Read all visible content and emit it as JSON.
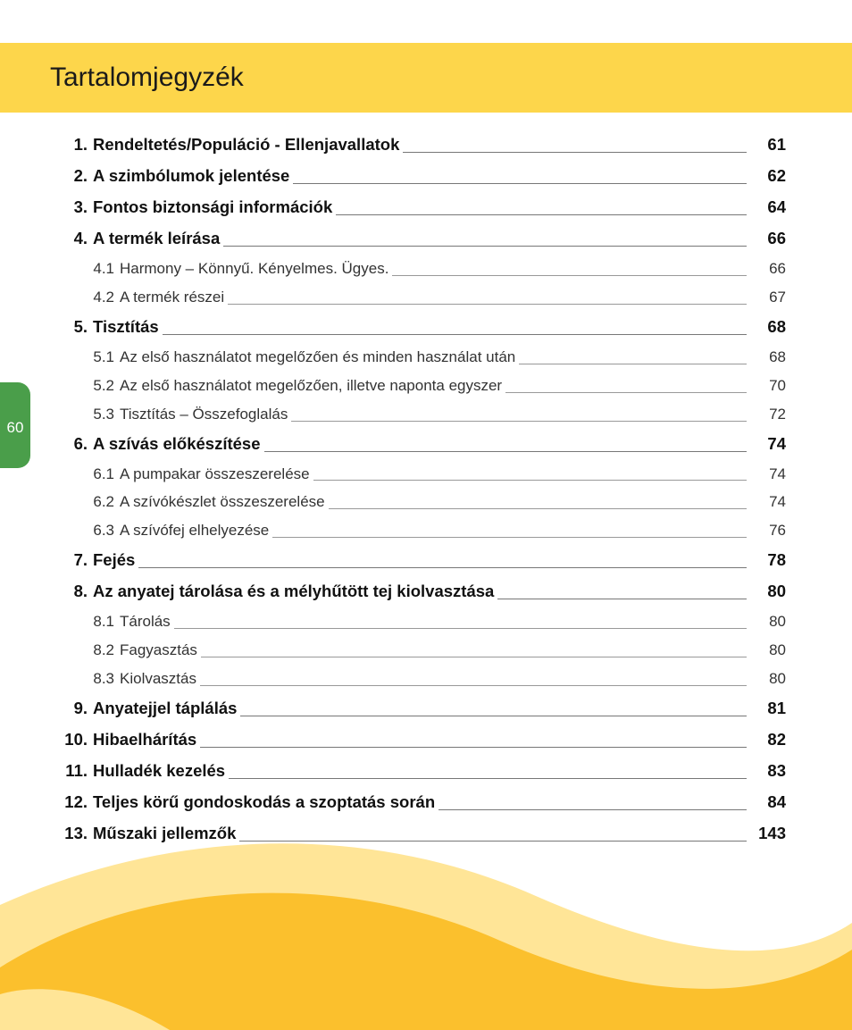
{
  "title": "Tartalomjegyzék",
  "page_number": "60",
  "colors": {
    "header_band": "#fdd64b",
    "page_tab": "#4a9e4a",
    "wave_dark": "#fbc02d",
    "wave_light": "#ffe597",
    "text": "#1a1a1a"
  },
  "entries": [
    {
      "level": "main",
      "num": "1.",
      "title": "Rendeltetés/Populáció - Ellenjavallatok",
      "page": "61"
    },
    {
      "level": "main",
      "num": "2.",
      "title": "A szimbólumok jelentése",
      "page": "62"
    },
    {
      "level": "main",
      "num": "3.",
      "title": "Fontos biztonsági információk",
      "page": "64"
    },
    {
      "level": "main",
      "num": "4.",
      "title": "A termék leírása",
      "page": "66"
    },
    {
      "level": "sub",
      "num": "4.1",
      "title": "Harmony – Könnyű. Kényelmes. Ügyes.",
      "page": "66"
    },
    {
      "level": "sub",
      "num": "4.2",
      "title": "A termék részei",
      "page": "67"
    },
    {
      "level": "main",
      "num": "5.",
      "title": "Tisztítás",
      "page": "68"
    },
    {
      "level": "sub",
      "num": "5.1",
      "title": "Az első használatot megelőzően és minden használat után",
      "page": "68"
    },
    {
      "level": "sub",
      "num": "5.2",
      "title": "Az első használatot megelőzően, illetve naponta egyszer",
      "page": "70"
    },
    {
      "level": "sub",
      "num": "5.3",
      "title": "Tisztítás – Összefoglalás",
      "page": "72"
    },
    {
      "level": "main",
      "num": "6.",
      "title": "A szívás előkészítése",
      "page": "74"
    },
    {
      "level": "sub",
      "num": "6.1",
      "title": "A pumpakar összeszerelése",
      "page": "74"
    },
    {
      "level": "sub",
      "num": "6.2",
      "title": "A szívókészlet összeszerelése",
      "page": "74"
    },
    {
      "level": "sub",
      "num": "6.3",
      "title": "A szívófej elhelyezése",
      "page": "76"
    },
    {
      "level": "main",
      "num": "7.",
      "title": "Fejés",
      "page": "78"
    },
    {
      "level": "main",
      "num": "8.",
      "title": "Az anyatej tárolása és a mélyhűtött tej kiolvasztása",
      "page": "80"
    },
    {
      "level": "sub",
      "num": "8.1",
      "title": "Tárolás",
      "page": "80"
    },
    {
      "level": "sub",
      "num": "8.2",
      "title": "Fagyasztás",
      "page": "80"
    },
    {
      "level": "sub",
      "num": "8.3",
      "title": "Kiolvasztás",
      "page": "80"
    },
    {
      "level": "main",
      "num": "9.",
      "title": "Anyatejjel táplálás",
      "page": "81"
    },
    {
      "level": "main",
      "num": "10.",
      "title": "Hibaelhárítás",
      "page": "82"
    },
    {
      "level": "main",
      "num": "11.",
      "title": "Hulladék kezelés",
      "page": "83"
    },
    {
      "level": "main",
      "num": "12.",
      "title": "Teljes körű gondoskodás a szoptatás során",
      "page": "84"
    },
    {
      "level": "main",
      "num": "13.",
      "title": "Műszaki jellemzők",
      "page": "143"
    }
  ]
}
